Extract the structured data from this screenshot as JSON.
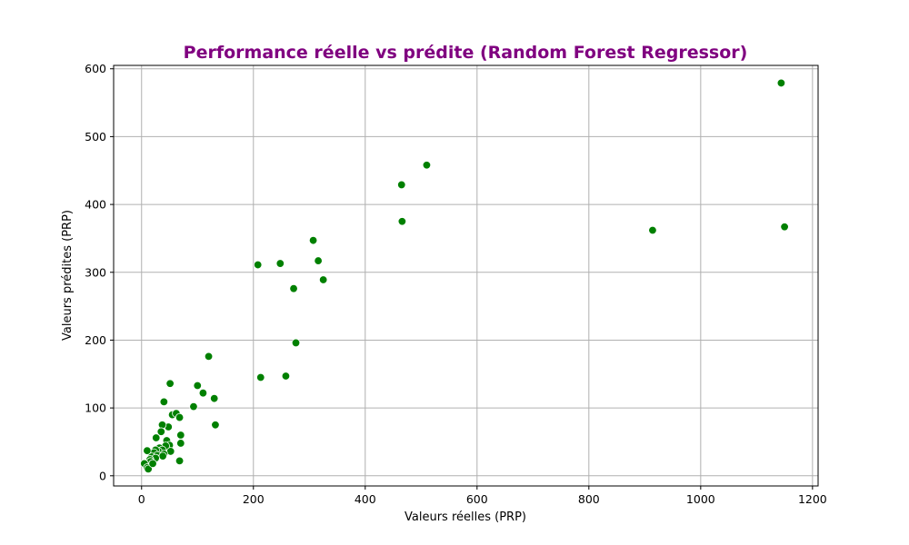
{
  "chart_data": {
    "type": "scatter",
    "title": "Performance réelle vs prédite (Random Forest Regressor)",
    "xlabel": "Valeurs réelles (PRP)",
    "ylabel": "Valeurs prédites (PRP)",
    "xlim": [
      -50,
      1210
    ],
    "ylim": [
      -15,
      605
    ],
    "xticks": [
      0,
      200,
      400,
      600,
      800,
      1000,
      1200
    ],
    "yticks": [
      0,
      100,
      200,
      300,
      400,
      500,
      600
    ],
    "grid": true,
    "colors": {
      "title": "#800080",
      "marker": "#008000",
      "grid": "#b0b0b0",
      "marker_edge": "#ffffff"
    },
    "points": [
      [
        1144,
        579
      ],
      [
        510,
        458
      ],
      [
        465,
        429
      ],
      [
        466,
        375
      ],
      [
        914,
        362
      ],
      [
        1150,
        367
      ],
      [
        307,
        347
      ],
      [
        316,
        317
      ],
      [
        248,
        313
      ],
      [
        208,
        311
      ],
      [
        325,
        289
      ],
      [
        272,
        276
      ],
      [
        276,
        196
      ],
      [
        258,
        147
      ],
      [
        213,
        145
      ],
      [
        120,
        176
      ],
      [
        100,
        133
      ],
      [
        110,
        122
      ],
      [
        130,
        114
      ],
      [
        93,
        102
      ],
      [
        132,
        75
      ],
      [
        51,
        136
      ],
      [
        40,
        109
      ],
      [
        55,
        90
      ],
      [
        62,
        92
      ],
      [
        68,
        86
      ],
      [
        48,
        72
      ],
      [
        37,
        75
      ],
      [
        35,
        65
      ],
      [
        70,
        60
      ],
      [
        26,
        56
      ],
      [
        70,
        48
      ],
      [
        45,
        52
      ],
      [
        50,
        45
      ],
      [
        43,
        44
      ],
      [
        32,
        41
      ],
      [
        37,
        38
      ],
      [
        52,
        36
      ],
      [
        30,
        36
      ],
      [
        25,
        38
      ],
      [
        22,
        34
      ],
      [
        40,
        32
      ],
      [
        28,
        30
      ],
      [
        18,
        28
      ],
      [
        38,
        29
      ],
      [
        25,
        26
      ],
      [
        15,
        24
      ],
      [
        16,
        21
      ],
      [
        68,
        22
      ],
      [
        10,
        37
      ],
      [
        5,
        18
      ],
      [
        10,
        12
      ],
      [
        12,
        10
      ],
      [
        20,
        18
      ]
    ]
  }
}
